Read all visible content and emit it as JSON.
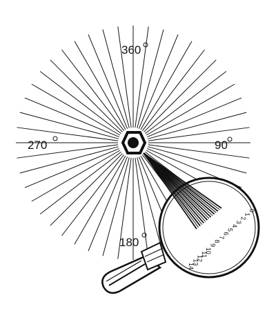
{
  "diagram": {
    "ray_count": 48,
    "labels": {
      "top": "360",
      "right": "90",
      "bottom": "180",
      "left": "270"
    },
    "magnifier_scale": [
      "0",
      "1",
      "2",
      "3",
      "4",
      "5",
      "6",
      "7",
      "8",
      "9",
      "10",
      "11",
      "12",
      "13",
      "14"
    ],
    "magnified_ray_count": 15,
    "colors": {
      "ink": "#111111",
      "paper": "#ffffff"
    }
  }
}
